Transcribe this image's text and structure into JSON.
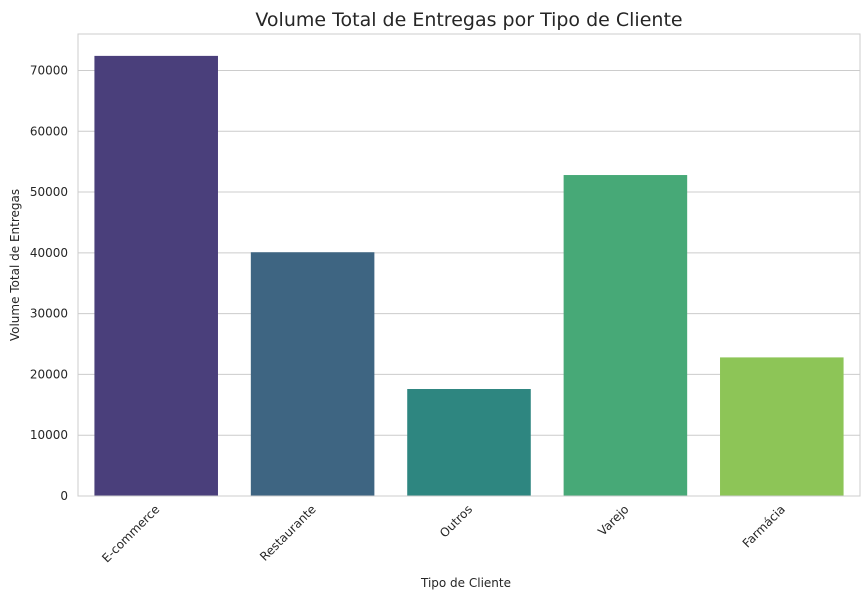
{
  "chart_data": {
    "type": "bar",
    "title": "Volume Total de Entregas por Tipo de Cliente",
    "xlabel": "Tipo de Cliente",
    "ylabel": "Volume Total de Entregas",
    "categories": [
      "E-commerce",
      "Restaurante",
      "Outros",
      "Varejo",
      "Farmácia"
    ],
    "values": [
      72400,
      40100,
      17600,
      52800,
      22800
    ],
    "colors": [
      "#4a3f7b",
      "#3e6582",
      "#2e8680",
      "#47a977",
      "#8dc557"
    ],
    "ylim": [
      0,
      76000
    ],
    "yticks": [
      0,
      10000,
      20000,
      30000,
      40000,
      50000,
      60000,
      70000
    ],
    "grid": true,
    "xtick_rotation": 45
  }
}
